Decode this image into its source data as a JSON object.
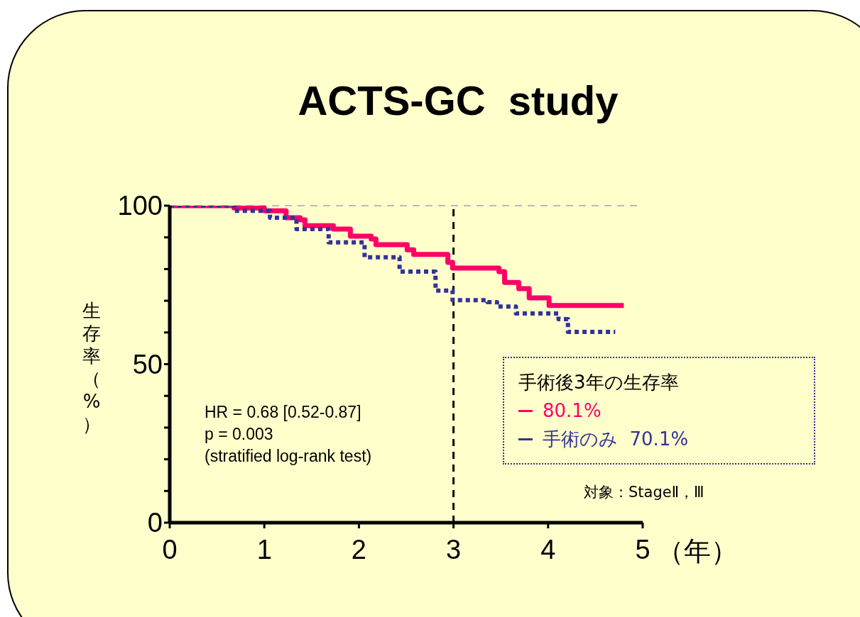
{
  "chart_data": {
    "type": "step",
    "title": "ACTS-GC  study",
    "xlabel": "（年）",
    "ylabel": "生存率（%）",
    "legend_title": "手術後3年の生存率",
    "xlim": [
      0,
      5
    ],
    "xticks": [
      0,
      1,
      2,
      3,
      4,
      5
    ],
    "ylim": [
      0,
      100
    ],
    "yticks": [
      0,
      {
        "value": 10,
        "label": null
      },
      {
        "value": 20,
        "label": null
      },
      {
        "value": 30,
        "label": null
      },
      {
        "value": 40,
        "label": null
      },
      50,
      {
        "value": 60,
        "label": null
      },
      {
        "value": 70,
        "label": null
      },
      {
        "value": 80,
        "label": null
      },
      {
        "value": 90,
        "label": null
      },
      100
    ],
    "series": [
      {
        "name": "80.1%",
        "color": "#ff0066",
        "line_style": "solid",
        "x": [
          0,
          0.68,
          1.0,
          1.23,
          1.38,
          1.43,
          1.73,
          1.91,
          2.13,
          2.18,
          2.51,
          2.58,
          2.94,
          2.99,
          3.48,
          3.54,
          3.69,
          3.8,
          3.99,
          4.01,
          4.8
        ],
        "values": [
          100,
          99.3,
          98.4,
          96.2,
          95.5,
          93.7,
          92.6,
          90.4,
          89.5,
          87.7,
          86.1,
          84.6,
          82.1,
          80.3,
          79.2,
          75.8,
          73.8,
          70.9,
          70.9,
          68.5,
          68.5
        ]
      },
      {
        "name": "手術のみ  70.1%",
        "color": "#333399",
        "line_style": "dotted",
        "x": [
          0,
          0.68,
          1.06,
          1.34,
          1.68,
          2.06,
          2.43,
          2.81,
          2.99,
          3.36,
          3.46,
          3.66,
          4.04,
          4.11,
          4.21,
          4.71
        ],
        "values": [
          100,
          98.4,
          96.2,
          92.6,
          88.4,
          83.7,
          79.2,
          73.2,
          70.2,
          69.6,
          68.2,
          66,
          66,
          64.2,
          60.2,
          60.2
        ]
      }
    ],
    "ref_lines": [
      {
        "axis": "y",
        "value": 100,
        "label": null,
        "color": "#bbbbbb",
        "line_style": "dashed"
      },
      {
        "axis": "x",
        "value": 3,
        "label": null,
        "color": "#000000",
        "line_style": "dashed"
      }
    ],
    "annotations": [
      "HR = 0.68 [0.52-0.87]",
      "p = 0.003",
      "(stratified log-rank test)",
      "対象：StageⅡ，Ⅲ"
    ],
    "legend": "right",
    "grid": false,
    "marker": "none"
  }
}
